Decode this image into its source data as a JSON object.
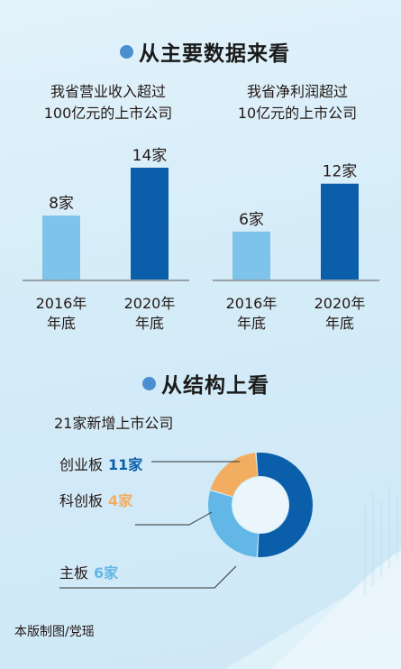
{
  "section1": {
    "title": "从主要数据来看"
  },
  "section2": {
    "title": "从结构上看"
  },
  "colors": {
    "bar_2016": "#7ec3ea",
    "bar_2020": "#0b5faa",
    "chuangye": "#0b5faa",
    "kechuang": "#f2ad60",
    "zhuban": "#62b7e6",
    "title_dot": "#4a8fd0"
  },
  "chart_data": [
    {
      "type": "bar",
      "title_line1": "我省营业收入超过",
      "title_line2": "100亿元的上市公司",
      "categories": [
        [
          "2016年",
          "年底"
        ],
        [
          "2020年",
          "年底"
        ]
      ],
      "values": [
        8,
        14
      ],
      "value_labels": [
        "8家",
        "14家"
      ],
      "unit": "家"
    },
    {
      "type": "bar",
      "title_line1": "我省净利润超过",
      "title_line2": "10亿元的上市公司",
      "categories": [
        [
          "2016年",
          "年底"
        ],
        [
          "2020年",
          "年底"
        ]
      ],
      "values": [
        6,
        12
      ],
      "value_labels": [
        "6家",
        "12家"
      ],
      "unit": "家"
    },
    {
      "type": "pie",
      "title": "21家新增上市公司",
      "total": 21,
      "slices": [
        {
          "name": "创业板",
          "value": 11,
          "value_label": "11家"
        },
        {
          "name": "科创板",
          "value": 4,
          "value_label": "4家"
        },
        {
          "name": "主板",
          "value": 6,
          "value_label": "6家"
        }
      ]
    }
  ],
  "credit": "本版制图/党瑶"
}
